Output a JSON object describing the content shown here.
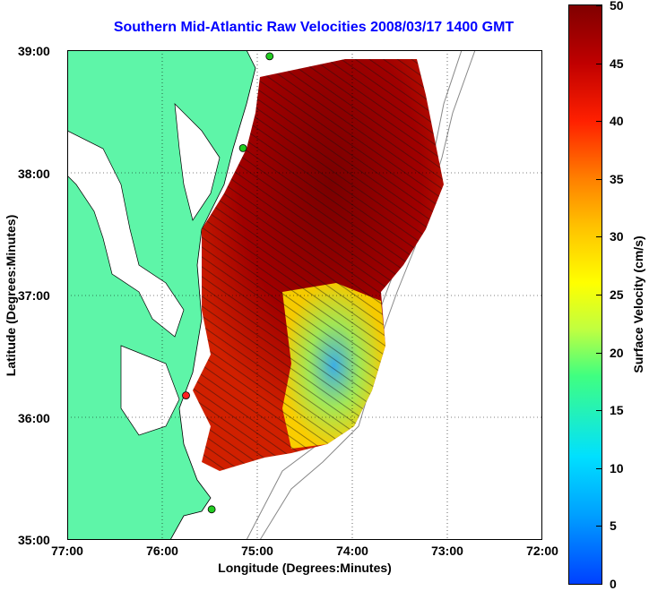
{
  "title": "Southern Mid-Atlantic Raw Velocities 2008/03/17 1400 GMT",
  "xlabel": "Longitude (Degrees:Minutes)",
  "ylabel": "Latitude (Degrees:Minutes)",
  "colorbar_label": "Surface Velocity (cm/s)",
  "x_ticks": [
    "77:00",
    "76:00",
    "75:00",
    "74:00",
    "73:00",
    "72:00"
  ],
  "y_ticks": [
    "39:00",
    "38:00",
    "37:00",
    "36:00",
    "35:00"
  ],
  "colorbar_ticks": [
    "0",
    "5",
    "10",
    "15",
    "20",
    "25",
    "30",
    "35",
    "40",
    "45",
    "50"
  ],
  "colors": {
    "land": "#5ef5a8",
    "title": "#0000ff",
    "site_active": "#22cc22",
    "site_alert": "#ff2020"
  },
  "chart_data": {
    "type": "heatmap",
    "title": "Southern Mid-Atlantic Raw Velocities 2008/03/17 1400 GMT",
    "xlabel": "Longitude (Degrees:Minutes)",
    "ylabel": "Latitude (Degrees:Minutes)",
    "xlim": [
      -77.0,
      -72.0
    ],
    "ylim": [
      35.0,
      39.0
    ],
    "colorbar": {
      "label": "Surface Velocity (cm/s)",
      "range": [
        0,
        50
      ]
    },
    "grid": true,
    "sites": [
      {
        "lon": -74.87,
        "lat": 38.95,
        "status": "active"
      },
      {
        "lon": -75.15,
        "lat": 38.2,
        "status": "active"
      },
      {
        "lon": -75.75,
        "lat": 36.18,
        "status": "alert"
      },
      {
        "lon": -75.48,
        "lat": 35.25,
        "status": "active"
      }
    ]
  }
}
